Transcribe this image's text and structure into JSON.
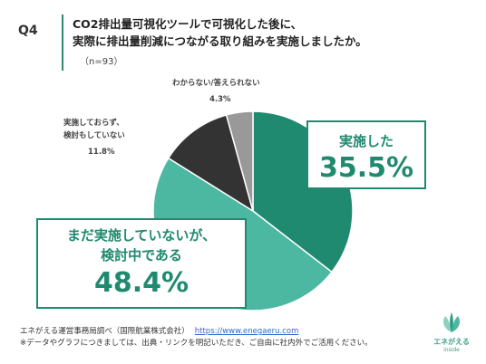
{
  "header": {
    "q": "Q4",
    "title_line1": "CO2排出量可視化ツールで可視化した後に、",
    "title_line2": "実際に排出量削減につながる取り組みを実施しましたか。",
    "n": "（n=93）"
  },
  "chart_data": {
    "type": "pie",
    "start_angle_deg": 0,
    "direction": "clockwise",
    "slices": [
      {
        "label": "実施した",
        "value": 35.5,
        "display": "35.5%",
        "color": "#1f8a6f"
      },
      {
        "label": "まだ実施していないが、検討中である",
        "label_line1": "まだ実施していないが、",
        "label_line2": "検討中である",
        "value": 48.4,
        "display": "48.4%",
        "color": "#4db8a2"
      },
      {
        "label": "実施しておらず、検討もしていない",
        "label_line1": "実施しておらず、",
        "label_line2": "検討もしていない",
        "value": 11.8,
        "display": "11.8%",
        "color": "#333333"
      },
      {
        "label": "わからない/答えられない",
        "value": 4.3,
        "display": "4.3%",
        "color": "#999999"
      }
    ]
  },
  "footer": {
    "line1": "エネがえる運営事務局調べ（国際航業株式会社）",
    "url": "https://www.enegaeru.com",
    "line2": "※データやグラフにつきましては、出典・リンクを明記いただき、ご自由に社内外でご活用ください。"
  },
  "logo": {
    "text": "エネがえる",
    "sub": "inside"
  }
}
